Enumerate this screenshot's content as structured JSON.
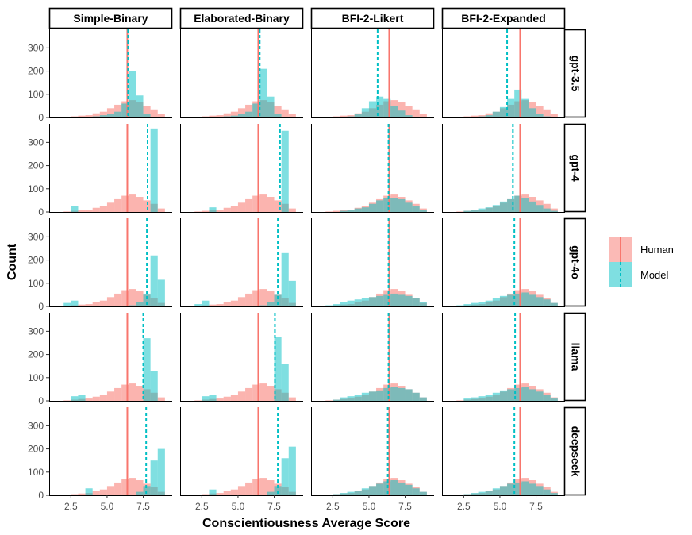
{
  "chart_data": {
    "type": "histogram-facet-grid",
    "xlabel": "Conscientiousness Average Score",
    "ylabel": "Count",
    "columns": [
      "Simple-Binary",
      "Elaborated-Binary",
      "BFI-2-Likert",
      "BFI-2-Expanded"
    ],
    "rows": [
      "gpt-3.5",
      "gpt-4",
      "gpt-4o",
      "llama",
      "deepseek"
    ],
    "xlim": [
      1,
      9.5
    ],
    "ylim": [
      0,
      380
    ],
    "xticks": [
      2.5,
      5.0,
      7.5
    ],
    "xtick_labels": [
      "2.5",
      "5.0",
      "7.5"
    ],
    "yticks": [
      0,
      100,
      200,
      300
    ],
    "ytick_labels": [
      "0",
      "100",
      "200",
      "300"
    ],
    "legend": {
      "position": "right",
      "items": [
        {
          "label": "Human",
          "color": "#F8766D",
          "line": "solid"
        },
        {
          "label": "Model",
          "color": "#00BFC4",
          "line": "dashed"
        }
      ]
    },
    "bin_starts": [
      1.5,
      2.0,
      2.5,
      3.0,
      3.5,
      4.0,
      4.5,
      5.0,
      5.5,
      6.0,
      6.5,
      7.0,
      7.5,
      8.0,
      8.5
    ],
    "bin_width": 0.5,
    "human_hist": [
      0,
      2,
      5,
      8,
      10,
      18,
      25,
      40,
      55,
      70,
      75,
      65,
      50,
      35,
      15
    ],
    "panels": [
      [
        {
          "row": "gpt-3.5",
          "col": "Simple-Binary",
          "human_mean": 6.4,
          "model_mean": 6.45,
          "model_hist": [
            0,
            0,
            0,
            0,
            0,
            5,
            10,
            15,
            25,
            60,
            200,
            95,
            15,
            0,
            0
          ]
        },
        {
          "row": "gpt-3.5",
          "col": "Elaborated-Binary",
          "human_mean": 6.4,
          "model_mean": 6.5,
          "model_hist": [
            0,
            0,
            0,
            0,
            0,
            5,
            8,
            15,
            25,
            60,
            210,
            90,
            15,
            0,
            0
          ]
        },
        {
          "row": "gpt-3.5",
          "col": "BFI-2-Likert",
          "human_mean": 6.4,
          "model_mean": 5.6,
          "model_hist": [
            0,
            0,
            0,
            0,
            5,
            15,
            40,
            70,
            90,
            80,
            50,
            30,
            10,
            0,
            0
          ]
        },
        {
          "row": "gpt-3.5",
          "col": "BFI-2-Expanded",
          "human_mean": 6.4,
          "model_mean": 5.5,
          "model_hist": [
            0,
            0,
            0,
            0,
            5,
            10,
            25,
            45,
            80,
            120,
            80,
            40,
            15,
            5,
            0
          ]
        }
      ],
      [
        {
          "row": "gpt-4",
          "col": "Simple-Binary",
          "human_mean": 6.4,
          "model_mean": 7.8,
          "model_hist": [
            0,
            0,
            25,
            0,
            0,
            0,
            0,
            0,
            0,
            0,
            0,
            0,
            0,
            360,
            0
          ]
        },
        {
          "row": "gpt-4",
          "col": "Elaborated-Binary",
          "human_mean": 6.4,
          "model_mean": 7.9,
          "model_hist": [
            0,
            0,
            0,
            20,
            0,
            0,
            0,
            0,
            0,
            0,
            0,
            0,
            0,
            350,
            0
          ]
        },
        {
          "row": "gpt-4",
          "col": "BFI-2-Likert",
          "human_mean": 6.4,
          "model_mean": 6.35,
          "model_hist": [
            0,
            0,
            0,
            5,
            10,
            15,
            20,
            35,
            50,
            60,
            60,
            55,
            40,
            25,
            10
          ]
        },
        {
          "row": "gpt-4",
          "col": "BFI-2-Expanded",
          "human_mean": 6.4,
          "model_mean": 5.9,
          "model_hist": [
            0,
            0,
            5,
            10,
            15,
            20,
            30,
            45,
            55,
            70,
            60,
            45,
            30,
            15,
            5
          ]
        }
      ],
      [
        {
          "row": "gpt-4o",
          "col": "Simple-Binary",
          "human_mean": 6.4,
          "model_mean": 7.75,
          "model_hist": [
            0,
            15,
            25,
            0,
            0,
            0,
            0,
            0,
            0,
            0,
            5,
            20,
            55,
            220,
            115
          ]
        },
        {
          "row": "gpt-4o",
          "col": "Elaborated-Binary",
          "human_mean": 6.4,
          "model_mean": 7.75,
          "model_hist": [
            0,
            10,
            25,
            0,
            0,
            0,
            0,
            0,
            0,
            0,
            5,
            20,
            50,
            230,
            110
          ]
        },
        {
          "row": "gpt-4o",
          "col": "BFI-2-Likert",
          "human_mean": 6.4,
          "model_mean": 6.35,
          "model_hist": [
            0,
            5,
            10,
            20,
            25,
            30,
            35,
            40,
            45,
            50,
            55,
            50,
            45,
            35,
            20
          ]
        },
        {
          "row": "gpt-4o",
          "col": "BFI-2-Expanded",
          "human_mean": 6.4,
          "model_mean": 6.0,
          "model_hist": [
            0,
            5,
            10,
            15,
            20,
            25,
            35,
            45,
            50,
            55,
            60,
            50,
            40,
            30,
            15
          ]
        }
      ],
      [
        {
          "row": "llama",
          "col": "Simple-Binary",
          "human_mean": 6.4,
          "model_mean": 7.5,
          "model_hist": [
            0,
            0,
            20,
            25,
            0,
            0,
            0,
            0,
            0,
            0,
            0,
            0,
            270,
            130,
            0
          ]
        },
        {
          "row": "llama",
          "col": "Elaborated-Binary",
          "human_mean": 6.4,
          "model_mean": 7.55,
          "model_hist": [
            0,
            0,
            20,
            25,
            0,
            0,
            0,
            0,
            0,
            0,
            0,
            0,
            275,
            160,
            0
          ]
        },
        {
          "row": "llama",
          "col": "BFI-2-Likert",
          "human_mean": 6.4,
          "model_mean": 6.35,
          "model_hist": [
            0,
            0,
            5,
            15,
            20,
            25,
            35,
            40,
            45,
            55,
            60,
            55,
            50,
            35,
            15
          ]
        },
        {
          "row": "llama",
          "col": "BFI-2-Expanded",
          "human_mean": 6.4,
          "model_mean": 6.05,
          "model_hist": [
            0,
            0,
            10,
            15,
            20,
            25,
            35,
            45,
            50,
            55,
            60,
            50,
            40,
            25,
            10
          ]
        }
      ],
      [
        {
          "row": "deepseek",
          "col": "Simple-Binary",
          "human_mean": 6.4,
          "model_mean": 7.7,
          "model_hist": [
            0,
            0,
            0,
            0,
            30,
            0,
            0,
            0,
            0,
            0,
            0,
            15,
            40,
            150,
            200
          ]
        },
        {
          "row": "deepseek",
          "col": "Elaborated-Binary",
          "human_mean": 6.4,
          "model_mean": 7.75,
          "model_hist": [
            0,
            0,
            0,
            25,
            0,
            0,
            0,
            0,
            0,
            0,
            0,
            15,
            40,
            160,
            210
          ]
        },
        {
          "row": "deepseek",
          "col": "BFI-2-Likert",
          "human_mean": 6.4,
          "model_mean": 6.3,
          "model_hist": [
            0,
            0,
            5,
            10,
            15,
            20,
            30,
            40,
            50,
            60,
            65,
            55,
            45,
            30,
            15
          ]
        },
        {
          "row": "deepseek",
          "col": "BFI-2-Expanded",
          "human_mean": 6.4,
          "model_mean": 6.0,
          "model_hist": [
            0,
            0,
            5,
            10,
            15,
            20,
            30,
            40,
            50,
            55,
            60,
            50,
            40,
            25,
            10
          ]
        }
      ]
    ]
  }
}
